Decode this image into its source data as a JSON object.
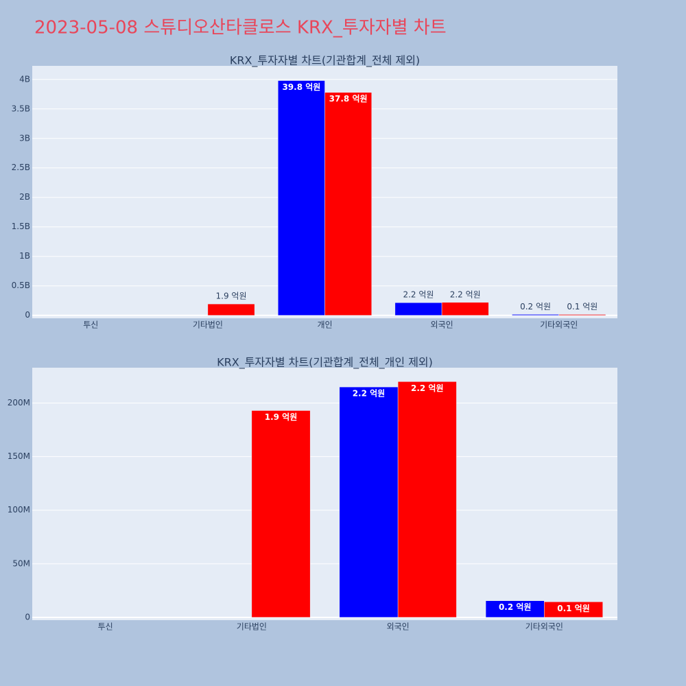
{
  "title": "2023-05-08 스튜디오산타클로스 KRX_투자자별 차트",
  "chart_data": [
    {
      "type": "bar",
      "title": "KRX_투자자별 차트(기관합계_전체 제외)",
      "categories": [
        "투신",
        "기타법인",
        "개인",
        "외국인",
        "기타외국인"
      ],
      "series": [
        {
          "color": "#0000ff",
          "values": [
            null,
            null,
            3980000000,
            215000000,
            15500000
          ],
          "value_labels": [
            null,
            null,
            "39.8 억원",
            "2.2 억원",
            "0.2 억원"
          ]
        },
        {
          "color": "#ff0000",
          "values": [
            null,
            193000000,
            3780000000,
            220000000,
            14500000
          ],
          "value_labels": [
            null,
            "1.9 억원",
            "37.8 억원",
            "2.2 억원",
            "0.1 억원"
          ]
        }
      ],
      "ylim": [
        -50000000,
        4230000000
      ],
      "yticks": [
        0,
        {
          "value": 500000000,
          "label": "0.5B"
        },
        {
          "value": 1000000000,
          "label": "1B"
        },
        {
          "value": 1500000000,
          "label": "1.5B"
        },
        {
          "value": 2000000000,
          "label": "2B"
        },
        {
          "value": 2500000000,
          "label": "2.5B"
        },
        {
          "value": 3000000000,
          "label": "3B"
        },
        {
          "value": 3500000000,
          "label": "3.5B"
        },
        {
          "value": 4000000000,
          "label": "4B"
        }
      ],
      "grid": true
    },
    {
      "type": "bar",
      "title": "KRX_투자자별 차트(기관합계_전체_개인 제외)",
      "categories": [
        "투신",
        "기타법인",
        "외국인",
        "기타외국인"
      ],
      "series": [
        {
          "color": "#0000ff",
          "values": [
            null,
            null,
            215000000,
            15500000
          ],
          "value_labels": [
            null,
            null,
            "2.2 억원",
            "0.2 억원"
          ]
        },
        {
          "color": "#ff0000",
          "values": [
            null,
            193000000,
            220000000,
            14500000
          ],
          "value_labels": [
            null,
            "1.9 억원",
            "2.2 억원",
            "0.1 억원"
          ]
        }
      ],
      "ylim": [
        -2600000,
        233000000
      ],
      "yticks": [
        0,
        {
          "value": 50000000,
          "label": "50M"
        },
        {
          "value": 100000000,
          "label": "100M"
        },
        {
          "value": 150000000,
          "label": "150M"
        },
        {
          "value": 200000000,
          "label": "200M"
        }
      ],
      "grid": true
    }
  ]
}
